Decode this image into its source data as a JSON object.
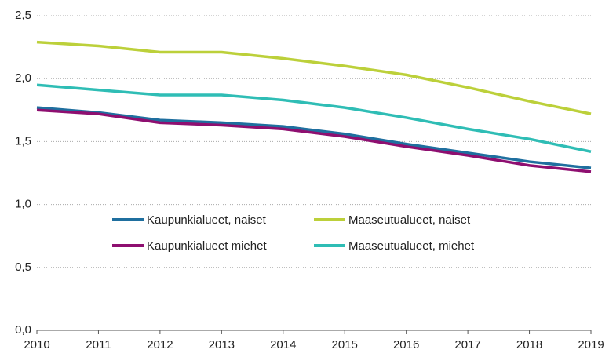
{
  "chart_data": {
    "type": "line",
    "x": [
      2010,
      2011,
      2012,
      2013,
      2014,
      2015,
      2016,
      2017,
      2018,
      2019
    ],
    "series": [
      {
        "name": "Kaupunkialueet, naiset",
        "color": "#1f6f9f",
        "values": [
          1.77,
          1.73,
          1.67,
          1.65,
          1.62,
          1.56,
          1.48,
          1.41,
          1.34,
          1.29
        ]
      },
      {
        "name": "Maaseutualueet, naiset",
        "color": "#bcd03a",
        "values": [
          2.29,
          2.26,
          2.21,
          2.21,
          2.16,
          2.1,
          2.03,
          1.93,
          1.82,
          1.72
        ]
      },
      {
        "name": "Kaupunkialueet miehet",
        "color": "#8e0f70",
        "values": [
          1.75,
          1.72,
          1.65,
          1.63,
          1.6,
          1.54,
          1.46,
          1.39,
          1.31,
          1.26
        ]
      },
      {
        "name": "Maaseutualueet, miehet",
        "color": "#2fbdb5",
        "values": [
          1.95,
          1.91,
          1.87,
          1.87,
          1.83,
          1.77,
          1.69,
          1.6,
          1.52,
          1.42
        ]
      }
    ],
    "xlim": [
      2010,
      2019
    ],
    "xticks": [
      2010,
      2011,
      2012,
      2013,
      2014,
      2015,
      2016,
      2017,
      2018,
      2019
    ],
    "ylim": [
      0,
      2.5
    ],
    "yticks": [
      {
        "value": 0,
        "label": "0,0"
      },
      {
        "value": 0.5,
        "label": "0,5"
      },
      {
        "value": 1,
        "label": "1,0"
      },
      {
        "value": 1.5,
        "label": "1,5"
      },
      {
        "value": 2,
        "label": "2,0"
      },
      {
        "value": 2.5,
        "label": "2,5"
      }
    ],
    "grid": true
  }
}
